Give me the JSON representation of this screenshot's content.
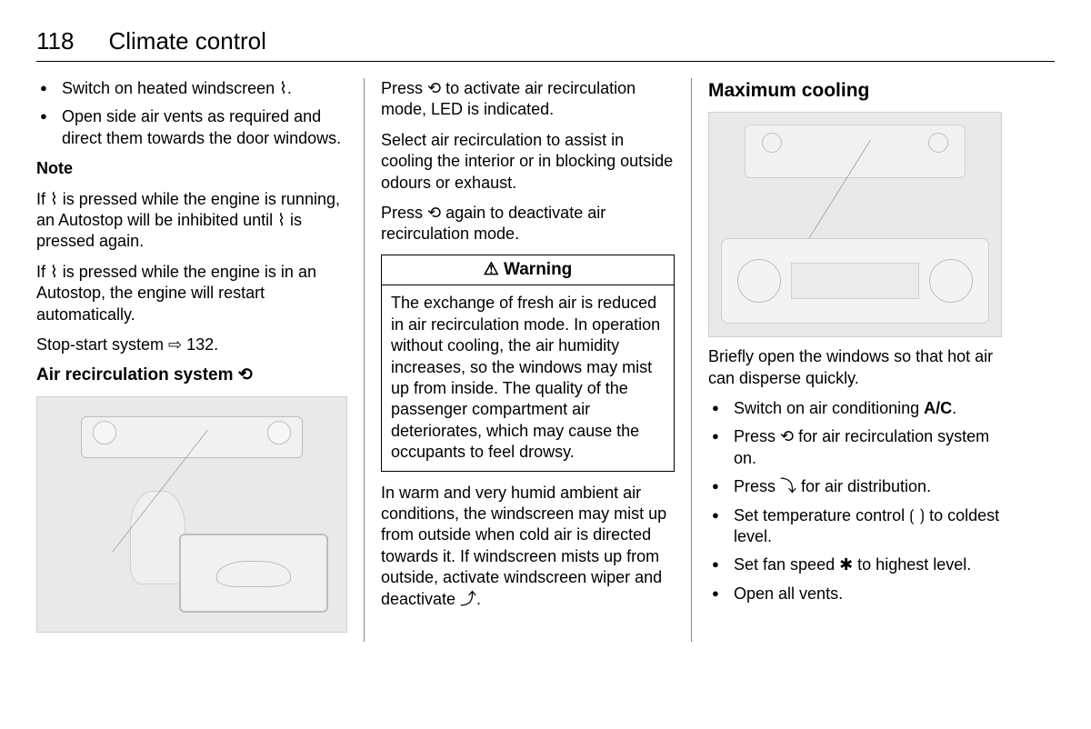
{
  "page": {
    "number": "118",
    "chapter": "Climate control"
  },
  "col1": {
    "bullets": [
      "Switch on heated windscreen ⌇.",
      "Open side air vents as required and direct them towards the door windows."
    ],
    "note_label": "Note",
    "note_p1": "If ⌇ is pressed while the engine is running, an Autostop will be inhibited until ⌇ is pressed again.",
    "note_p2": "If ⌇ is pressed while the engine is in an Autostop, the engine will restart automatically.",
    "stopstart": "Stop-start system ⇨ 132.",
    "section_heading": "Air recirculation system ⟲"
  },
  "col2": {
    "p1": "Press ⟲ to activate air recirculation mode, LED is indicated.",
    "p2": "Select air recirculation to assist in cooling the interior or in blocking outside odours or exhaust.",
    "p3": "Press ⟲ again to deactivate air recirculation mode.",
    "warning_title": "⚠ Warning",
    "warning_body": "The exchange of fresh air is reduced in air recirculation mode. In operation without cooling, the air humidity increases, so the windows may mist up from inside. The quality of the passenger compartment air deteriorates, which may cause the occupants to feel drowsy.",
    "p4": "In warm and very humid ambient air conditions, the windscreen may mist up from outside when cold air is directed towards it. If windscreen mists up from outside, activate windscreen wiper and deactivate ⤴."
  },
  "col3": {
    "heading": "Maximum cooling",
    "intro": "Briefly open the windows so that hot air can disperse quickly.",
    "bullets": {
      "b1_pre": "Switch on air conditioning ",
      "b1_ac": "A/C",
      "b1_post": ".",
      "b2": "Press ⟲ for air recirculation system on.",
      "b3": "Press ⤵ for air distribution.",
      "b4": "Set temperature control ⟮ ⟯ to coldest level.",
      "b5": "Set fan speed ✱ to highest level.",
      "b6": "Open all vents."
    }
  }
}
